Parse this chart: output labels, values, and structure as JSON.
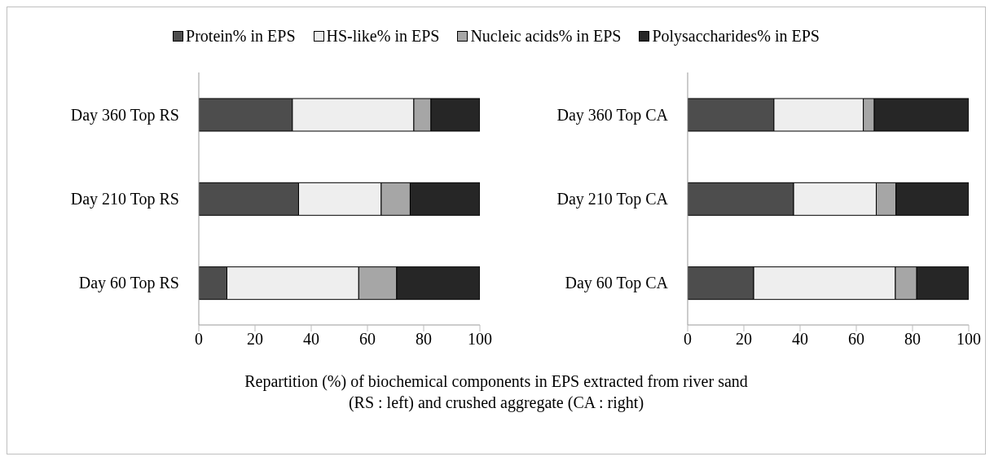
{
  "chart_data": [
    {
      "type": "bar",
      "orientation": "horizontal",
      "stacked": true,
      "legend": "top",
      "xlabel": "Repartition (%) of biochemical components in EPS extracted from river sand\n(RS  : left) and crushed aggregate (CA  : right)",
      "categories": [
        "Day 360 Top RS",
        "Day 210 Top RS",
        "Day 60 Top RS"
      ],
      "series": [
        {
          "name": "Protein% in EPS",
          "color": "#4d4d4d",
          "values": [
            33.3,
            35.5,
            10
          ]
        },
        {
          "name": "HS-like% in EPS",
          "color": "#eeeeee",
          "values": [
            43.2,
            29.4,
            46.9
          ]
        },
        {
          "name": "Nucleic acids% in EPS",
          "color": "#a6a6a6",
          "values": [
            6.1,
            10.3,
            13.5
          ]
        },
        {
          "name": "Polysaccharides% in EPS",
          "color": "#262626",
          "values": [
            17.4,
            24.8,
            29.6
          ]
        }
      ],
      "xlim": [
        0,
        100
      ],
      "xticks": [
        0,
        20,
        40,
        60,
        80,
        100
      ],
      "grid": false
    },
    {
      "type": "bar",
      "orientation": "horizontal",
      "stacked": true,
      "categories": [
        "Day 360 Top CA",
        "Day 210 Top CA",
        "Day 60 Top CA"
      ],
      "series": [
        {
          "color": "#4d4d4d",
          "values": [
            30.7,
            37.7,
            23.5
          ]
        },
        {
          "color": "#eeeeee",
          "values": [
            31.8,
            29.4,
            50.4
          ]
        },
        {
          "color": "#a6a6a6",
          "values": [
            3.9,
            7.0,
            7.6
          ]
        },
        {
          "color": "#262626",
          "values": [
            33.6,
            25.9,
            18.5
          ]
        }
      ],
      "xlim": [
        0,
        100
      ],
      "xticks": [
        0,
        20,
        40,
        60,
        80,
        100
      ],
      "grid": false
    }
  ]
}
